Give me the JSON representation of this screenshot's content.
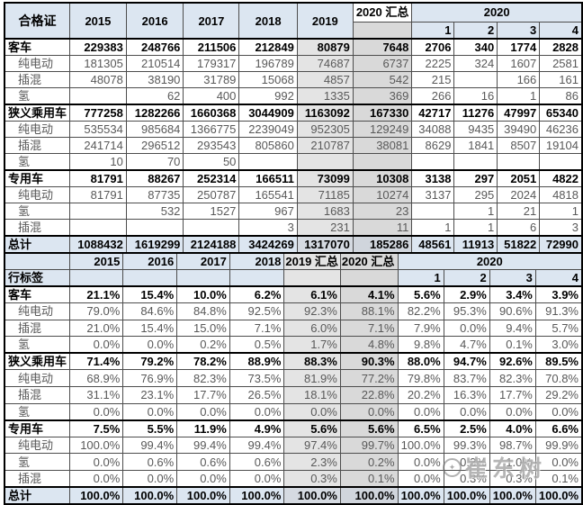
{
  "watermark": {
    "text": "崔东树",
    "icon": "circle-logo"
  },
  "colors": {
    "header_blue": "#dce6f1",
    "col_2019_gray": "#e4e4e4",
    "col_2020sum_gray": "#d9d9d9"
  },
  "chart_data": [
    {
      "type": "table",
      "name": "certificate-counts",
      "corner_label": "合格证",
      "year_columns": [
        "2015",
        "2016",
        "2017",
        "2018",
        "2019",
        "2020 汇总"
      ],
      "group_label": "2020",
      "quarter_columns": [
        "1",
        "2",
        "3",
        "4"
      ],
      "rows": [
        {
          "label": "客车",
          "style": "category",
          "cells": [
            "229383",
            "248766",
            "211506",
            "212849",
            "80879",
            "7648",
            "2706",
            "340",
            "1774",
            "2828"
          ]
        },
        {
          "label": "纯电动",
          "style": "sub",
          "cells": [
            "181305",
            "210514",
            "179317",
            "196789",
            "74687",
            "6737",
            "2225",
            "324",
            "1607",
            "2581"
          ]
        },
        {
          "label": "插混",
          "style": "sub",
          "cells": [
            "48078",
            "38190",
            "31789",
            "15068",
            "4857",
            "542",
            "215",
            "",
            "166",
            "161"
          ]
        },
        {
          "label": "氢",
          "style": "sub",
          "cells": [
            "",
            "62",
            "400",
            "992",
            "1335",
            "369",
            "266",
            "16",
            "1",
            "86"
          ]
        },
        {
          "label": "狭义乘用车",
          "style": "category",
          "cells": [
            "777258",
            "1282266",
            "1660368",
            "3044909",
            "1163092",
            "167330",
            "42717",
            "11276",
            "47997",
            "65340"
          ]
        },
        {
          "label": "纯电动",
          "style": "sub",
          "cells": [
            "535534",
            "985684",
            "1366775",
            "2239049",
            "952305",
            "129249",
            "34088",
            "9435",
            "39490",
            "46236"
          ]
        },
        {
          "label": "插混",
          "style": "sub",
          "cells": [
            "241714",
            "296512",
            "293543",
            "805860",
            "210787",
            "38081",
            "8629",
            "1841",
            "8507",
            "19104"
          ]
        },
        {
          "label": "氢",
          "style": "sub",
          "cells": [
            "10",
            "70",
            "50",
            "",
            "",
            "",
            "",
            "",
            "",
            ""
          ]
        },
        {
          "label": "专用车",
          "style": "category",
          "cells": [
            "81791",
            "88267",
            "252314",
            "166511",
            "73099",
            "10308",
            "3138",
            "297",
            "2051",
            "4822"
          ]
        },
        {
          "label": "纯电动",
          "style": "sub",
          "cells": [
            "81791",
            "87735",
            "250787",
            "165541",
            "71185",
            "10274",
            "3137",
            "295",
            "2024",
            "4818"
          ]
        },
        {
          "label": "氢",
          "style": "sub",
          "cells": [
            "",
            "532",
            "1527",
            "967",
            "1683",
            "23",
            "",
            "1",
            "21",
            "1"
          ]
        },
        {
          "label": "插混",
          "style": "sub",
          "cells": [
            "",
            "",
            "",
            "3",
            "231",
            "11",
            "1",
            "1",
            "6",
            "3"
          ]
        },
        {
          "label": "总计",
          "style": "total",
          "cells": [
            "1088432",
            "1619299",
            "2124188",
            "3424269",
            "1317070",
            "185286",
            "48561",
            "11913",
            "51822",
            "72990"
          ]
        }
      ]
    },
    {
      "type": "table",
      "name": "category-share-percent",
      "corner_label": "行标签",
      "year_columns": [
        "2015",
        "2016",
        "2017",
        "2018",
        "2019 汇总",
        "2020 汇总"
      ],
      "group_label": "2020",
      "quarter_columns": [
        "1",
        "2",
        "3",
        "4"
      ],
      "rows": [
        {
          "label": "客车",
          "style": "category",
          "cells": [
            "21.1%",
            "15.4%",
            "10.0%",
            "6.2%",
            "6.1%",
            "4.1%",
            "5.6%",
            "2.9%",
            "3.4%",
            "3.9%"
          ]
        },
        {
          "label": "纯电动",
          "style": "sub",
          "cells": [
            "79.0%",
            "84.6%",
            "84.8%",
            "92.5%",
            "92.3%",
            "88.1%",
            "82.2%",
            "95.3%",
            "90.6%",
            "91.3%"
          ]
        },
        {
          "label": "插混",
          "style": "sub",
          "cells": [
            "21.0%",
            "15.4%",
            "15.0%",
            "7.1%",
            "6.0%",
            "7.1%",
            "7.9%",
            "0.0%",
            "9.4%",
            "5.7%"
          ]
        },
        {
          "label": "氢",
          "style": "sub",
          "cells": [
            "0.0%",
            "0.0%",
            "0.2%",
            "0.5%",
            "1.7%",
            "4.8%",
            "9.8%",
            "4.7%",
            "0.1%",
            "3.0%"
          ]
        },
        {
          "label": "狭义乘用车",
          "style": "category",
          "cells": [
            "71.4%",
            "79.2%",
            "78.2%",
            "88.9%",
            "88.3%",
            "90.3%",
            "88.0%",
            "94.7%",
            "92.6%",
            "89.5%"
          ]
        },
        {
          "label": "纯电动",
          "style": "sub",
          "cells": [
            "68.9%",
            "76.9%",
            "82.3%",
            "73.5%",
            "81.9%",
            "77.2%",
            "79.8%",
            "83.7%",
            "82.3%",
            "70.8%"
          ]
        },
        {
          "label": "插混",
          "style": "sub",
          "cells": [
            "31.1%",
            "23.1%",
            "17.7%",
            "26.5%",
            "18.1%",
            "22.8%",
            "20.2%",
            "16.3%",
            "17.7%",
            "29.2%"
          ]
        },
        {
          "label": "氢",
          "style": "sub",
          "cells": [
            "0.0%",
            "0.0%",
            "0.0%",
            "0.0%",
            "0.0%",
            "0.0%",
            "0.0%",
            "0.0%",
            "0.0%",
            "0.0%"
          ]
        },
        {
          "label": "专用车",
          "style": "category",
          "cells": [
            "7.5%",
            "5.5%",
            "11.9%",
            "4.9%",
            "5.6%",
            "5.6%",
            "6.5%",
            "2.5%",
            "4.0%",
            "6.6%"
          ]
        },
        {
          "label": "纯电动",
          "style": "sub",
          "cells": [
            "100.0%",
            "99.4%",
            "99.4%",
            "99.4%",
            "97.4%",
            "99.7%",
            "100.0%",
            "99.3%",
            "98.7%",
            "99.9%"
          ]
        },
        {
          "label": "氢",
          "style": "sub",
          "cells": [
            "0.0%",
            "0.6%",
            "0.6%",
            "0.6%",
            "2.3%",
            "0.2%",
            "0.0%",
            "0.3%",
            "1.0%",
            "0.0%"
          ]
        },
        {
          "label": "插混",
          "style": "sub",
          "cells": [
            "0.0%",
            "0.0%",
            "0.0%",
            "0.0%",
            "0.3%",
            "0.1%",
            "0.0%",
            "0.3%",
            "0.3%",
            "0.1%"
          ]
        },
        {
          "label": "总计",
          "style": "total",
          "cells": [
            "100.0%",
            "100.0%",
            "100.0%",
            "100.0%",
            "100.0%",
            "100.0%",
            "100.0%",
            "100.0%",
            "100.0%",
            "100.0%"
          ]
        }
      ]
    }
  ]
}
